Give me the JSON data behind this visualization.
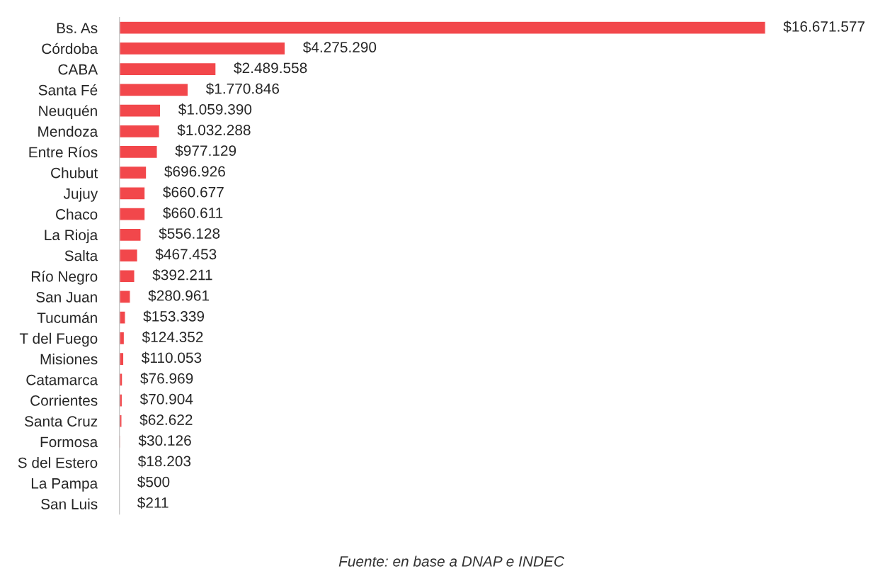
{
  "chart_data": {
    "type": "bar",
    "orientation": "horizontal",
    "color": "#f2474b",
    "grid": false,
    "legend": false,
    "tick_labels": "y",
    "categories": [
      "Bs. As",
      "Córdoba",
      "CABA",
      "Santa Fé",
      "Neuquén",
      "Mendoza",
      "Entre Ríos",
      "Chubut",
      "Jujuy",
      "Chaco",
      "La Rioja",
      "Salta",
      "Río Negro",
      "San Juan",
      "Tucumán",
      "T del Fuego",
      "Misiones",
      "Catamarca",
      "Corrientes",
      "Santa Cruz",
      "Formosa",
      "S del Estero",
      "La Pampa",
      "San Luis"
    ],
    "values": [
      16671577,
      4275290,
      2489558,
      1770846,
      1059390,
      1032288,
      977129,
      696926,
      660677,
      660611,
      556128,
      467453,
      392211,
      280961,
      153339,
      124352,
      110053,
      76969,
      70904,
      62622,
      30126,
      18203,
      500,
      211
    ],
    "value_labels": [
      "$16.671.577",
      "$4.275.290",
      "$2.489.558",
      "$1.770.846",
      "$1.059.390",
      "$1.032.288",
      "$977.129",
      "$696.926",
      "$660.677",
      "$660.611",
      "$556.128",
      "$467.453",
      "$392.211",
      "$280.961",
      "$153.339",
      "$124.352",
      "$110.053",
      "$76.969",
      "$70.904",
      "$62.622",
      "$30.126",
      "$18.203",
      "$500",
      "$211"
    ],
    "annotations": [
      "Fuente: en base a DNAP e INDEC"
    ]
  }
}
